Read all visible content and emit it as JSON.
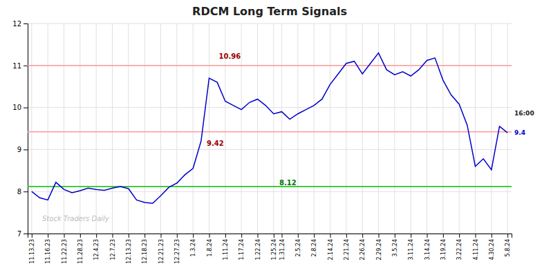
{
  "chart_data": {
    "type": "line",
    "title": "RDCM Long Term Signals",
    "categories": [
      "11.13.23",
      null,
      "11.16.23",
      null,
      "11.22.23",
      null,
      "11.28.23",
      null,
      "12.4.23",
      null,
      "12.7.23",
      null,
      "12.13.23",
      null,
      "12.18.23",
      null,
      "12.21.23",
      null,
      "12.27.23",
      null,
      "1.3.24",
      null,
      "1.8.24",
      null,
      "1.11.24",
      null,
      "1.17.24",
      null,
      "1.22.24",
      null,
      "1.25.24",
      "1.31.24",
      null,
      "2.5.24",
      null,
      "2.8.24",
      null,
      "2.14.24",
      null,
      "2.21.24",
      null,
      "2.26.24",
      null,
      "2.29.24",
      null,
      "3.5.24",
      null,
      "3.11.24",
      null,
      "3.14.24",
      null,
      "3.19.24",
      null,
      "3.22.24",
      null,
      "4.11.24",
      null,
      "4.30.24",
      null,
      "5.8.24"
    ],
    "values": [
      8.0,
      7.85,
      7.8,
      8.22,
      8.05,
      7.97,
      8.02,
      8.08,
      8.05,
      8.03,
      8.08,
      8.12,
      8.07,
      7.8,
      7.74,
      7.72,
      7.9,
      8.1,
      8.2,
      8.4,
      8.55,
      9.2,
      10.7,
      10.6,
      10.15,
      10.05,
      9.95,
      10.12,
      10.2,
      10.05,
      9.85,
      9.9,
      9.72,
      9.85,
      9.95,
      10.05,
      10.2,
      10.55,
      10.8,
      11.05,
      11.1,
      10.8,
      11.05,
      11.3,
      10.9,
      10.78,
      10.85,
      10.75,
      10.9,
      11.12,
      11.18,
      10.65,
      10.3,
      10.08,
      9.58,
      8.6,
      8.78,
      8.52,
      9.55,
      9.4
    ],
    "color": "#0000cc",
    "hlines": [
      {
        "y": 8.12,
        "color": "#00bb00"
      },
      {
        "y": 11.0,
        "color": "#ff9999"
      },
      {
        "y": 9.42,
        "color": "#ff9999"
      }
    ],
    "annotations": [
      {
        "text": "10.96",
        "color": "#990000"
      },
      {
        "text": "9.42",
        "color": "#990000"
      },
      {
        "text": "8.12",
        "color": "#007700"
      },
      {
        "text": "16:00",
        "color": "#222222"
      },
      {
        "text": "9.4",
        "color": "#0000cc"
      },
      {
        "text": "Stock Traders Daily",
        "color": "#bbbbbb"
      }
    ],
    "ylim": [
      7,
      12
    ],
    "yticks": [
      7,
      8,
      9,
      10,
      11,
      12
    ],
    "grid": true
  }
}
